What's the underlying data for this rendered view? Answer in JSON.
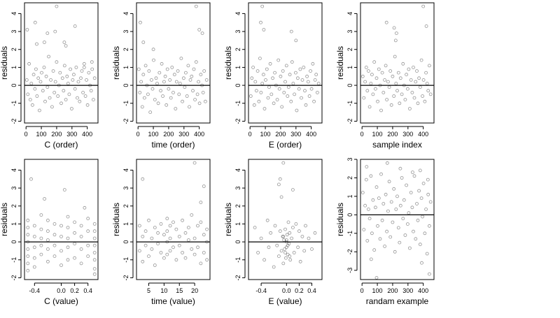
{
  "chart_data": [
    {
      "type": "scatter",
      "xlabel": "C (order)",
      "ylabel": "residuals",
      "xlim": [
        -10,
        470
      ],
      "ylim": [
        -2.1,
        4.6
      ],
      "xticks": [
        0,
        100,
        200,
        300,
        400
      ],
      "yticks": [
        -2,
        -1,
        0,
        1,
        2,
        3,
        4
      ],
      "reference_line_y": 0,
      "grid": false,
      "x": [
        5,
        12,
        20,
        28,
        35,
        42,
        50,
        58,
        65,
        72,
        80,
        88,
        95,
        102,
        110,
        118,
        125,
        132,
        140,
        148,
        155,
        162,
        170,
        178,
        185,
        192,
        200,
        208,
        215,
        222,
        230,
        238,
        245,
        252,
        260,
        268,
        275,
        282,
        290,
        298,
        305,
        312,
        320,
        328,
        335,
        342,
        350,
        358,
        365,
        372,
        380,
        388,
        395,
        402,
        410,
        418,
        425,
        432,
        440,
        448,
        8,
        60,
        70,
        120,
        140,
        190,
        200,
        250,
        260,
        320,
        380,
        430
      ],
      "y": [
        0.3,
        -0.5,
        1.2,
        -0.8,
        0.1,
        -1.1,
        0.6,
        -0.2,
        0.9,
        -0.6,
        0.4,
        -1.4,
        0.2,
        0.7,
        -0.3,
        1.0,
        -0.9,
        0.5,
        -0.1,
        1.6,
        -0.7,
        0.3,
        -1.2,
        0.8,
        -0.4,
        0.2,
        1.3,
        -0.6,
        0.0,
        0.7,
        -1.0,
        0.4,
        -0.3,
        1.1,
        -0.8,
        0.5,
        0.1,
        -0.5,
        0.9,
        -1.3,
        0.3,
        0.6,
        -0.2,
        1.0,
        -0.7,
        0.2,
        -0.9,
        0.4,
        0.8,
        -0.4,
        1.2,
        -0.6,
        0.3,
        -1.1,
        0.7,
        0.0,
        -0.3,
        0.9,
        -0.8,
        0.4,
        3.1,
        3.5,
        2.3,
        2.4,
        2.9,
        3.0,
        4.4,
        2.4,
        2.2,
        3.3,
        1.0,
        1.3
      ]
    },
    {
      "type": "scatter",
      "xlabel": "time (order)",
      "ylabel": "residuals",
      "xlim": [
        -10,
        470
      ],
      "ylim": [
        -2.1,
        4.6
      ],
      "xticks": [
        0,
        100,
        200,
        300,
        400
      ],
      "yticks": [
        -2,
        -1,
        0,
        1,
        2,
        3,
        4
      ],
      "reference_line_y": 0,
      "grid": false,
      "x": [
        5,
        12,
        20,
        28,
        35,
        42,
        50,
        58,
        65,
        72,
        80,
        88,
        95,
        102,
        110,
        118,
        125,
        132,
        140,
        148,
        155,
        162,
        170,
        178,
        185,
        192,
        200,
        208,
        215,
        222,
        230,
        238,
        245,
        252,
        260,
        268,
        275,
        282,
        290,
        298,
        305,
        312,
        320,
        328,
        335,
        342,
        350,
        358,
        365,
        372,
        380,
        388,
        395,
        402,
        410,
        418,
        425,
        432,
        440,
        448,
        15,
        35,
        100,
        380,
        400,
        420
      ],
      "y": [
        0.9,
        -0.4,
        0.2,
        -1.2,
        0.6,
        -0.7,
        1.1,
        0.0,
        -0.5,
        0.8,
        -1.5,
        0.3,
        -0.2,
        1.4,
        -0.8,
        0.4,
        0.1,
        -1.0,
        0.7,
        -0.3,
        1.2,
        -0.6,
        0.2,
        0.5,
        -1.1,
        0.9,
        -0.2,
        0.3,
        -0.7,
        1.0,
        -0.4,
        0.6,
        -1.3,
        0.2,
        0.8,
        -0.5,
        0.1,
        1.5,
        -0.9,
        0.4,
        -0.1,
        0.7,
        -0.6,
        1.1,
        -1.2,
        0.3,
        0.5,
        -0.3,
        0.9,
        -0.8,
        1.3,
        -0.5,
        0.2,
        -1.0,
        0.6,
        0.0,
        -0.4,
        0.8,
        -0.9,
        0.3,
        3.5,
        2.4,
        2.0,
        4.4,
        3.1,
        2.9
      ]
    },
    {
      "type": "scatter",
      "xlabel": "E (order)",
      "ylabel": "residuals",
      "xlim": [
        -10,
        470
      ],
      "ylim": [
        -2.1,
        4.6
      ],
      "xticks": [
        0,
        100,
        200,
        300,
        400
      ],
      "yticks": [
        -2,
        -1,
        0,
        1,
        2,
        3,
        4
      ],
      "reference_line_y": 0,
      "grid": false,
      "x": [
        5,
        12,
        20,
        28,
        35,
        42,
        50,
        58,
        65,
        72,
        80,
        88,
        95,
        102,
        110,
        118,
        125,
        132,
        140,
        148,
        155,
        162,
        170,
        178,
        185,
        192,
        200,
        208,
        215,
        222,
        230,
        238,
        245,
        252,
        260,
        268,
        275,
        282,
        290,
        298,
        305,
        312,
        320,
        328,
        335,
        342,
        350,
        358,
        365,
        372,
        380,
        388,
        395,
        402,
        410,
        418,
        425,
        432,
        440,
        448,
        70,
        80,
        90,
        270,
        300
      ],
      "y": [
        -0.6,
        0.4,
        1.0,
        -1.1,
        0.2,
        -0.3,
        0.8,
        -0.9,
        1.5,
        -0.4,
        0.1,
        0.6,
        -1.3,
        0.3,
        0.9,
        -0.7,
        -0.1,
        1.2,
        -0.5,
        0.4,
        -1.0,
        0.7,
        0.0,
        -0.8,
        1.4,
        -0.2,
        0.5,
        -1.2,
        0.8,
        -0.4,
        0.2,
        1.1,
        -0.6,
        -0.1,
        0.6,
        -0.9,
        1.3,
        0.1,
        -0.5,
        0.7,
        -1.4,
        0.4,
        -0.2,
        0.9,
        -0.7,
        0.3,
        1.0,
        -0.3,
        -1.1,
        0.5,
        0.2,
        -0.6,
        0.8,
        -0.2,
        1.2,
        -0.9,
        0.3,
        0.6,
        -0.4,
        0.1,
        3.5,
        4.4,
        3.1,
        3.0,
        2.5
      ]
    },
    {
      "type": "scatter",
      "xlabel": "sample index",
      "ylabel": "residuals",
      "xlim": [
        -10,
        470
      ],
      "ylim": [
        -2.1,
        4.6
      ],
      "xticks": [
        0,
        100,
        200,
        300,
        400
      ],
      "yticks": [
        -2,
        -1,
        0,
        1,
        2,
        3,
        4
      ],
      "reference_line_y": 0,
      "grid": false,
      "x": [
        5,
        12,
        20,
        28,
        35,
        42,
        50,
        58,
        65,
        72,
        80,
        88,
        95,
        102,
        110,
        118,
        125,
        132,
        140,
        148,
        155,
        162,
        170,
        178,
        185,
        192,
        200,
        208,
        215,
        222,
        230,
        238,
        245,
        252,
        260,
        268,
        275,
        282,
        290,
        298,
        305,
        312,
        320,
        328,
        335,
        342,
        350,
        358,
        365,
        372,
        380,
        388,
        395,
        402,
        410,
        418,
        425,
        432,
        440,
        448,
        160,
        210,
        220,
        225,
        400,
        420
      ],
      "y": [
        0.5,
        -0.7,
        0.2,
        1.0,
        -0.3,
        0.8,
        -1.2,
        0.1,
        0.6,
        -0.5,
        1.3,
        -0.2,
        0.4,
        -0.9,
        0.9,
        0.0,
        -1.4,
        0.7,
        -0.4,
        0.3,
        1.1,
        -0.8,
        0.2,
        -0.1,
        0.8,
        -1.1,
        0.5,
        -0.6,
        1.6,
        0.1,
        -0.3,
        0.7,
        -1.0,
        0.4,
        -0.5,
        1.2,
        0.0,
        -0.8,
        0.6,
        -0.2,
        0.9,
        -1.3,
        0.3,
        -0.4,
        1.0,
        -0.7,
        0.2,
        0.8,
        -1.0,
        0.4,
        -0.1,
        1.4,
        -0.6,
        0.3,
        -0.9,
        0.7,
        0.1,
        -0.3,
        1.1,
        -0.5,
        3.5,
        3.2,
        2.5,
        2.9,
        4.4,
        3.3
      ]
    },
    {
      "type": "scatter",
      "xlabel": "C (value)",
      "ylabel": "residuals",
      "xlim": [
        -0.55,
        0.55
      ],
      "ylim": [
        -2.1,
        4.6
      ],
      "xticks": [
        -0.4,
        0.0,
        0.2,
        0.4
      ],
      "xticklabels": [
        "-0.4",
        "0.0",
        "0.2",
        "0.4"
      ],
      "yticks": [
        -2,
        -1,
        0,
        1,
        2,
        3,
        4
      ],
      "reference_line_y": 0,
      "grid": false,
      "x": [
        -0.5,
        -0.5,
        -0.5,
        -0.5,
        -0.5,
        -0.5,
        -0.5,
        -0.5,
        -0.4,
        -0.4,
        -0.4,
        -0.4,
        -0.4,
        -0.3,
        -0.3,
        -0.3,
        -0.3,
        -0.3,
        -0.2,
        -0.2,
        -0.2,
        -0.2,
        -0.2,
        -0.1,
        -0.1,
        -0.1,
        -0.1,
        0.0,
        0.0,
        0.0,
        0.0,
        0.1,
        0.1,
        0.1,
        0.1,
        0.1,
        0.2,
        0.2,
        0.2,
        0.2,
        0.3,
        0.3,
        0.3,
        0.3,
        0.4,
        0.4,
        0.4,
        0.4,
        0.5,
        0.5,
        0.5,
        0.5,
        0.5,
        0.5,
        0.5,
        0.5,
        -0.45,
        -0.25,
        0.05,
        0.35
      ],
      "y": [
        -1.2,
        -0.8,
        -0.4,
        0.0,
        0.4,
        0.8,
        1.2,
        -1.6,
        -0.9,
        -0.3,
        0.3,
        0.9,
        -1.4,
        -0.7,
        -0.2,
        0.2,
        0.7,
        1.5,
        -1.1,
        -0.4,
        0.1,
        0.6,
        1.2,
        -0.8,
        -0.2,
        0.4,
        1.0,
        -1.3,
        -0.5,
        0.3,
        0.9,
        -1.0,
        -0.3,
        0.2,
        0.8,
        1.4,
        -0.9,
        -0.1,
        0.5,
        1.1,
        -1.2,
        -0.4,
        0.3,
        0.9,
        -0.8,
        -0.2,
        0.6,
        1.3,
        -1.5,
        -1.0,
        -0.6,
        -0.2,
        0.2,
        0.6,
        1.0,
        -1.8,
        3.5,
        2.4,
        2.9,
        1.9
      ]
    },
    {
      "type": "scatter",
      "xlabel": "time (value)",
      "ylabel": "residuals",
      "xlim": [
        1,
        25
      ],
      "ylim": [
        -2.1,
        4.6
      ],
      "xticks": [
        5,
        10,
        15,
        20
      ],
      "yticks": [
        -2,
        -1,
        0,
        1,
        2,
        3,
        4
      ],
      "reference_line_y": 0,
      "grid": false,
      "x": [
        2,
        2,
        3,
        3,
        4,
        4,
        5,
        5,
        6,
        6,
        7,
        7,
        8,
        8,
        9,
        9,
        10,
        10,
        11,
        11,
        11,
        11,
        12,
        12,
        12,
        13,
        13,
        14,
        14,
        15,
        15,
        16,
        16,
        17,
        17,
        18,
        18,
        19,
        19,
        20,
        20,
        21,
        21,
        22,
        22,
        23,
        23,
        24,
        24,
        24,
        3,
        20,
        22,
        23
      ],
      "y": [
        0.9,
        -0.5,
        0.3,
        -1.1,
        0.6,
        -0.2,
        1.2,
        -0.8,
        0.2,
        -0.4,
        0.8,
        -1.3,
        0.5,
        -0.1,
        1.0,
        -0.6,
        0.4,
        -0.9,
        1.3,
        0.6,
        0.0,
        -0.7,
        0.9,
        0.2,
        -0.5,
        1.1,
        -0.3,
        0.7,
        -1.0,
        0.3,
        -0.2,
        1.2,
        -0.6,
        0.5,
        -0.9,
        0.1,
        0.8,
        -0.4,
        1.5,
        -0.7,
        0.2,
        0.9,
        -0.3,
        1.1,
        -1.2,
        0.4,
        -0.6,
        0.7,
        0.0,
        -1.0,
        3.5,
        4.4,
        2.2,
        3.1
      ]
    },
    {
      "type": "scatter",
      "xlabel": "E (value)",
      "ylabel": "residuals",
      "xlim": [
        -0.6,
        0.56
      ],
      "ylim": [
        -2.1,
        4.6
      ],
      "xticks": [
        -0.4,
        0.0,
        0.2,
        0.4
      ],
      "xticklabels": [
        "-0.4",
        "0.0",
        "0.2",
        "0.4"
      ],
      "yticks": [
        -2,
        -1,
        0,
        1,
        2,
        3,
        4
      ],
      "reference_line_y": 0,
      "grid": false,
      "x": [
        -0.5,
        -0.45,
        -0.4,
        -0.35,
        -0.3,
        -0.28,
        -0.25,
        -0.2,
        -0.18,
        -0.15,
        -0.12,
        -0.1,
        -0.08,
        -0.06,
        -0.05,
        -0.04,
        -0.03,
        -0.02,
        -0.01,
        0.0,
        0.0,
        0.01,
        0.02,
        0.03,
        0.04,
        0.05,
        0.06,
        0.08,
        0.1,
        0.12,
        0.15,
        0.18,
        0.2,
        0.22,
        0.25,
        0.28,
        0.3,
        0.35,
        0.4,
        0.45,
        -0.02,
        0.02,
        -0.05,
        0.05,
        0.0,
        -0.1,
        -0.12,
        -0.08,
        -0.05,
        0.1
      ],
      "y": [
        0.8,
        -0.6,
        0.2,
        -1.0,
        1.2,
        -0.3,
        0.5,
        -1.4,
        0.9,
        -0.2,
        -0.8,
        0.6,
        -0.5,
        0.3,
        -1.2,
        0.1,
        -0.4,
        0.7,
        -0.9,
        0.0,
        -0.3,
        0.4,
        -0.7,
        1.1,
        -0.1,
        0.5,
        -1.0,
        0.2,
        0.8,
        -0.6,
        1.0,
        -0.3,
        0.6,
        -1.1,
        0.3,
        -0.5,
        0.9,
        0.2,
        -0.4,
        0.5,
        -0.6,
        -0.2,
        0.3,
        -0.8,
        0.1,
        3.5,
        3.2,
        2.5,
        4.4,
        2.9
      ]
    },
    {
      "type": "scatter",
      "xlabel": "randam example",
      "ylabel": "residuals",
      "xlim": [
        -10,
        470
      ],
      "ylim": [
        -3.5,
        3.0
      ],
      "xticks": [
        0,
        100,
        200,
        300,
        400
      ],
      "yticks": [
        -3,
        -2,
        -1,
        0,
        1,
        2,
        3
      ],
      "reference_line_y": 0,
      "grid": false,
      "x": [
        5,
        12,
        20,
        28,
        35,
        42,
        50,
        58,
        65,
        72,
        80,
        88,
        95,
        102,
        110,
        118,
        125,
        132,
        140,
        148,
        155,
        162,
        170,
        178,
        185,
        192,
        200,
        208,
        215,
        222,
        230,
        238,
        245,
        252,
        260,
        268,
        275,
        282,
        290,
        298,
        305,
        312,
        320,
        328,
        335,
        342,
        350,
        358,
        365,
        372,
        380,
        388,
        395,
        402,
        410,
        418,
        425,
        432,
        440,
        448,
        30,
        95,
        165,
        250,
        330,
        380,
        430,
        60,
        440,
        390
      ],
      "y": [
        1.2,
        -0.8,
        0.5,
        1.9,
        -1.4,
        0.3,
        -0.2,
        2.1,
        -1.0,
        0.8,
        -1.9,
        0.4,
        1.5,
        -0.6,
        0.9,
        -1.3,
        2.2,
        -0.3,
        0.6,
        -1.7,
        1.1,
        -0.9,
        0.2,
        1.8,
        -1.2,
        0.7,
        -0.4,
        1.4,
        -2.0,
        0.3,
        1.0,
        -0.7,
        -1.5,
        0.5,
        2.0,
        -0.2,
        0.8,
        -1.1,
        1.6,
        -0.5,
        0.1,
        -1.8,
        1.2,
        0.4,
        -0.9,
        2.1,
        -1.3,
        0.6,
        -0.3,
        1.3,
        -1.6,
        0.9,
        -0.1,
        1.7,
        -1.0,
        0.3,
        -2.1,
        1.1,
        -0.6,
        0.7,
        2.6,
        -3.4,
        2.8,
        2.5,
        2.3,
        2.4,
        1.9,
        -2.4,
        -3.2,
        -2.6
      ]
    }
  ]
}
